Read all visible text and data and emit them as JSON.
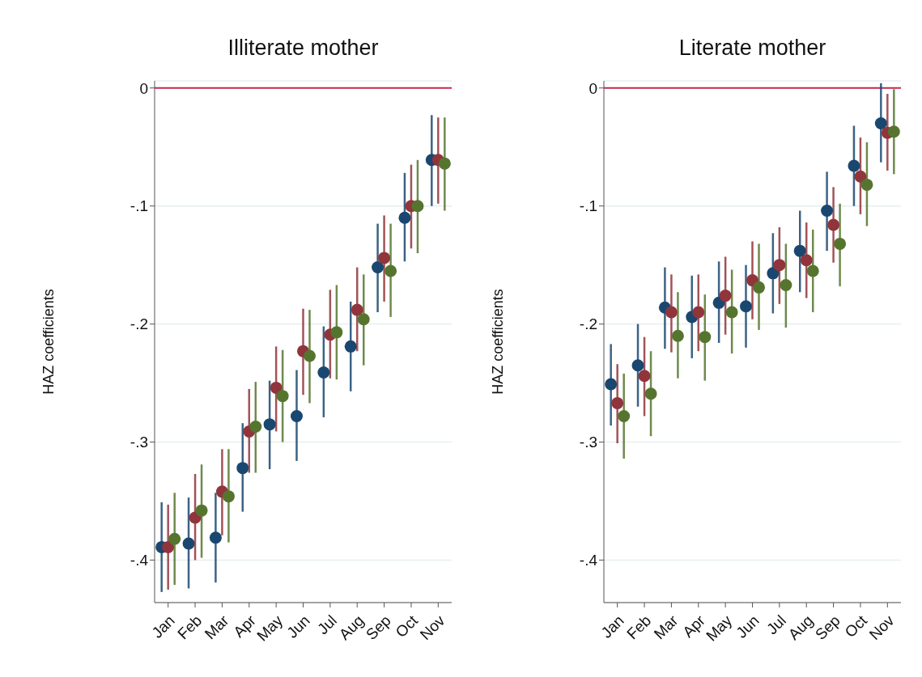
{
  "chart_data": [
    {
      "type": "scatter",
      "title": "Illiterate mother",
      "ylabel": "HAZ coefficients",
      "categories": [
        "Jan",
        "Feb",
        "Mar",
        "Apr",
        "May",
        "Jun",
        "Jul",
        "Aug",
        "Sep",
        "Oct",
        "Nov"
      ],
      "series": [
        {
          "color": "#1a476f",
          "values": [
            -0.389,
            -0.386,
            -0.381,
            -0.322,
            -0.285,
            -0.278,
            -0.241,
            -0.219,
            -0.152,
            -0.11,
            -0.061
          ],
          "errors": [
            [
              -0.427,
              -0.351
            ],
            [
              -0.424,
              -0.347
            ],
            [
              -0.419,
              -0.343
            ],
            [
              -0.359,
              -0.284
            ],
            [
              -0.323,
              -0.248
            ],
            [
              -0.316,
              -0.239
            ],
            [
              -0.279,
              -0.202
            ],
            [
              -0.257,
              -0.181
            ],
            [
              -0.19,
              -0.115
            ],
            [
              -0.147,
              -0.072
            ],
            [
              -0.1,
              -0.023
            ]
          ]
        },
        {
          "color": "#90353b",
          "values": [
            -0.389,
            -0.364,
            -0.342,
            -0.291,
            -0.254,
            -0.223,
            -0.209,
            -0.188,
            -0.144,
            -0.1,
            -0.061
          ],
          "errors": [
            [
              -0.425,
              -0.353
            ],
            [
              -0.4,
              -0.327
            ],
            [
              -0.379,
              -0.306
            ],
            [
              -0.326,
              -0.255
            ],
            [
              -0.291,
              -0.219
            ],
            [
              -0.26,
              -0.187
            ],
            [
              -0.246,
              -0.171
            ],
            [
              -0.223,
              -0.152
            ],
            [
              -0.181,
              -0.108
            ],
            [
              -0.136,
              -0.065
            ],
            [
              -0.098,
              -0.025
            ]
          ]
        },
        {
          "color": "#55752f",
          "values": [
            -0.382,
            -0.358,
            -0.346,
            -0.287,
            -0.261,
            -0.227,
            -0.207,
            -0.196,
            -0.155,
            -0.1,
            -0.064
          ],
          "errors": [
            [
              -0.421,
              -0.343
            ],
            [
              -0.398,
              -0.319
            ],
            [
              -0.385,
              -0.306
            ],
            [
              -0.326,
              -0.249
            ],
            [
              -0.3,
              -0.222
            ],
            [
              -0.267,
              -0.188
            ],
            [
              -0.247,
              -0.167
            ],
            [
              -0.235,
              -0.158
            ],
            [
              -0.194,
              -0.115
            ],
            [
              -0.14,
              -0.061
            ],
            [
              -0.104,
              -0.025
            ]
          ]
        }
      ],
      "ylim": [
        -0.436,
        0.006
      ],
      "yticks": [
        {
          "value": -0.4,
          "label": "-.4"
        },
        {
          "value": -0.3,
          "label": "-.3"
        },
        {
          "value": -0.2,
          "label": "-.2"
        },
        {
          "value": -0.1,
          "label": "-.1"
        },
        0
      ],
      "ref_lines": [
        {
          "axis": "y",
          "value": 0,
          "color": "#c8284c"
        }
      ],
      "grid": "y",
      "marker": "circle",
      "legend": false
    },
    {
      "type": "scatter",
      "title": "Literate mother",
      "ylabel": "HAZ coefficients",
      "categories": [
        "Jan",
        "Feb",
        "Mar",
        "Apr",
        "May",
        "Jun",
        "Jul",
        "Aug",
        "Sep",
        "Oct",
        "Nov"
      ],
      "series": [
        {
          "color": "#1a476f",
          "values": [
            -0.251,
            -0.235,
            -0.186,
            -0.194,
            -0.182,
            -0.185,
            -0.157,
            -0.138,
            -0.104,
            -0.066,
            -0.03
          ],
          "errors": [
            [
              -0.286,
              -0.217
            ],
            [
              -0.27,
              -0.2
            ],
            [
              -0.221,
              -0.152
            ],
            [
              -0.229,
              -0.159
            ],
            [
              -0.216,
              -0.147
            ],
            [
              -0.22,
              -0.15
            ],
            [
              -0.191,
              -0.123
            ],
            [
              -0.173,
              -0.104
            ],
            [
              -0.138,
              -0.071
            ],
            [
              -0.1,
              -0.032
            ],
            [
              -0.063,
              0.004
            ]
          ]
        },
        {
          "color": "#90353b",
          "values": [
            -0.267,
            -0.244,
            -0.19,
            -0.19,
            -0.176,
            -0.163,
            -0.15,
            -0.146,
            -0.116,
            -0.075,
            -0.038
          ],
          "errors": [
            [
              -0.301,
              -0.234
            ],
            [
              -0.278,
              -0.211
            ],
            [
              -0.224,
              -0.158
            ],
            [
              -0.223,
              -0.158
            ],
            [
              -0.209,
              -0.143
            ],
            [
              -0.196,
              -0.13
            ],
            [
              -0.183,
              -0.118
            ],
            [
              -0.178,
              -0.114
            ],
            [
              -0.148,
              -0.084
            ],
            [
              -0.107,
              -0.042
            ],
            [
              -0.07,
              -0.005
            ]
          ]
        },
        {
          "color": "#55752f",
          "values": [
            -0.278,
            -0.259,
            -0.21,
            -0.211,
            -0.19,
            -0.169,
            -0.167,
            -0.155,
            -0.132,
            -0.082,
            -0.037
          ],
          "errors": [
            [
              -0.314,
              -0.242
            ],
            [
              -0.295,
              -0.223
            ],
            [
              -0.246,
              -0.173
            ],
            [
              -0.248,
              -0.175
            ],
            [
              -0.225,
              -0.154
            ],
            [
              -0.205,
              -0.132
            ],
            [
              -0.203,
              -0.132
            ],
            [
              -0.19,
              -0.12
            ],
            [
              -0.168,
              -0.098
            ],
            [
              -0.117,
              -0.046
            ],
            [
              -0.073,
              -0.001
            ]
          ]
        }
      ],
      "ylim": [
        -0.436,
        0.006
      ],
      "yticks": [
        {
          "value": -0.4,
          "label": "-.4"
        },
        {
          "value": -0.3,
          "label": "-.3"
        },
        {
          "value": -0.2,
          "label": "-.2"
        },
        {
          "value": -0.1,
          "label": "-.1"
        },
        0
      ],
      "ref_lines": [
        {
          "axis": "y",
          "value": 0,
          "color": "#c8284c"
        }
      ],
      "grid": "y",
      "marker": "circle",
      "legend": false
    }
  ]
}
